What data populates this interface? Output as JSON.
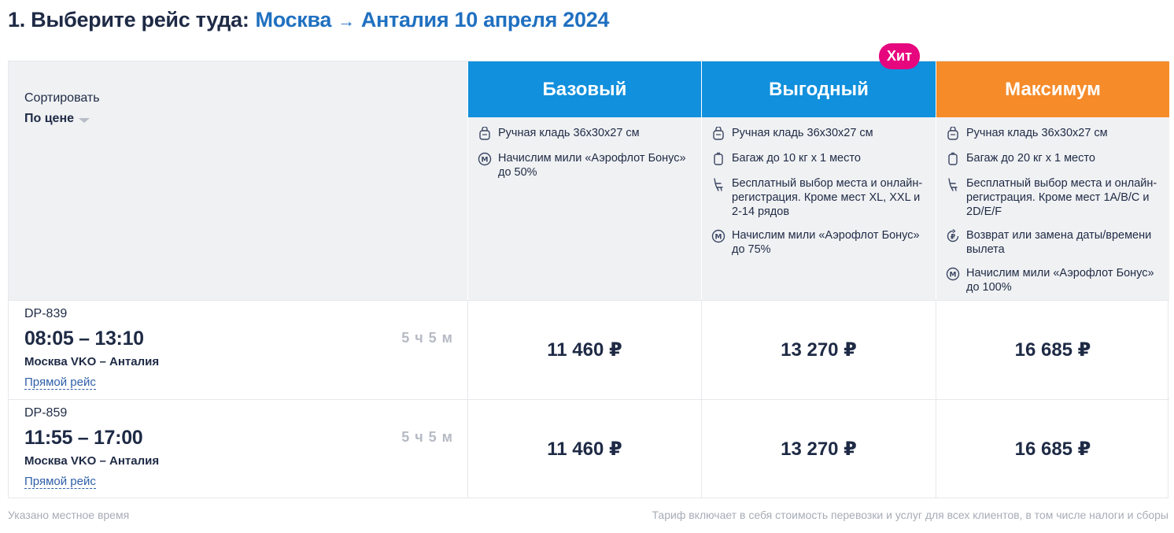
{
  "title": {
    "prefix": "1. Выберите рейс туда:",
    "origin": "Москва",
    "arrow": "→",
    "destination_date": "Анталия 10 апреля 2024"
  },
  "sort": {
    "label": "Сортировать",
    "value": "По цене"
  },
  "badge": "Хит",
  "fares": [
    {
      "name": "Базовый",
      "color": "#1190dd",
      "features": [
        {
          "icon": "carry-on-icon",
          "text": "Ручная кладь 36x30x27 см"
        },
        {
          "icon": "miles-icon",
          "text": "Начислим мили «Аэрофлот Бонус» до 50%"
        }
      ]
    },
    {
      "name": "Выгодный",
      "color": "#1190dd",
      "features": [
        {
          "icon": "carry-on-icon",
          "text": "Ручная кладь 36x30x27 см"
        },
        {
          "icon": "luggage-icon",
          "text": "Багаж до 10 кг х 1 место"
        },
        {
          "icon": "seat-icon",
          "text": "Бесплатный выбор места и онлайн-регистрация. Кроме мест XL, XXL и 2-14 рядов"
        },
        {
          "icon": "miles-icon",
          "text": "Начислим мили «Аэрофлот Бонус» до 75%"
        }
      ]
    },
    {
      "name": "Максимум",
      "color": "#f68b2a",
      "features": [
        {
          "icon": "carry-on-icon",
          "text": "Ручная кладь 36x30x27 см"
        },
        {
          "icon": "luggage-icon",
          "text": "Багаж до 20 кг х 1 место"
        },
        {
          "icon": "seat-icon",
          "text": "Бесплатный выбор места и онлайн-регистрация. Кроме мест 1A/B/C и 2D/E/F"
        },
        {
          "icon": "refund-icon",
          "text": "Возврат или замена даты/времени вылета"
        },
        {
          "icon": "miles-icon",
          "text": "Начислим мили «Аэрофлот Бонус» до 100%"
        }
      ]
    }
  ],
  "flights": [
    {
      "number": "DP-839",
      "time": "08:05 – 13:10",
      "route": "Москва VKO – Анталия",
      "type": "Прямой рейс",
      "duration": "5 ч 5 м",
      "prices": [
        "11 460 ₽",
        "13 270 ₽",
        "16 685 ₽"
      ]
    },
    {
      "number": "DP-859",
      "time": "11:55 – 17:00",
      "route": "Москва VKO – Анталия",
      "type": "Прямой рейс",
      "duration": "5 ч 5 м",
      "prices": [
        "11 460 ₽",
        "13 270 ₽",
        "16 685 ₽"
      ]
    }
  ],
  "footer": {
    "left": "Указано местное время",
    "right": "Тариф включает в себя стоимость перевозки и услуг для всех клиентов, в том числе налоги и сборы"
  }
}
